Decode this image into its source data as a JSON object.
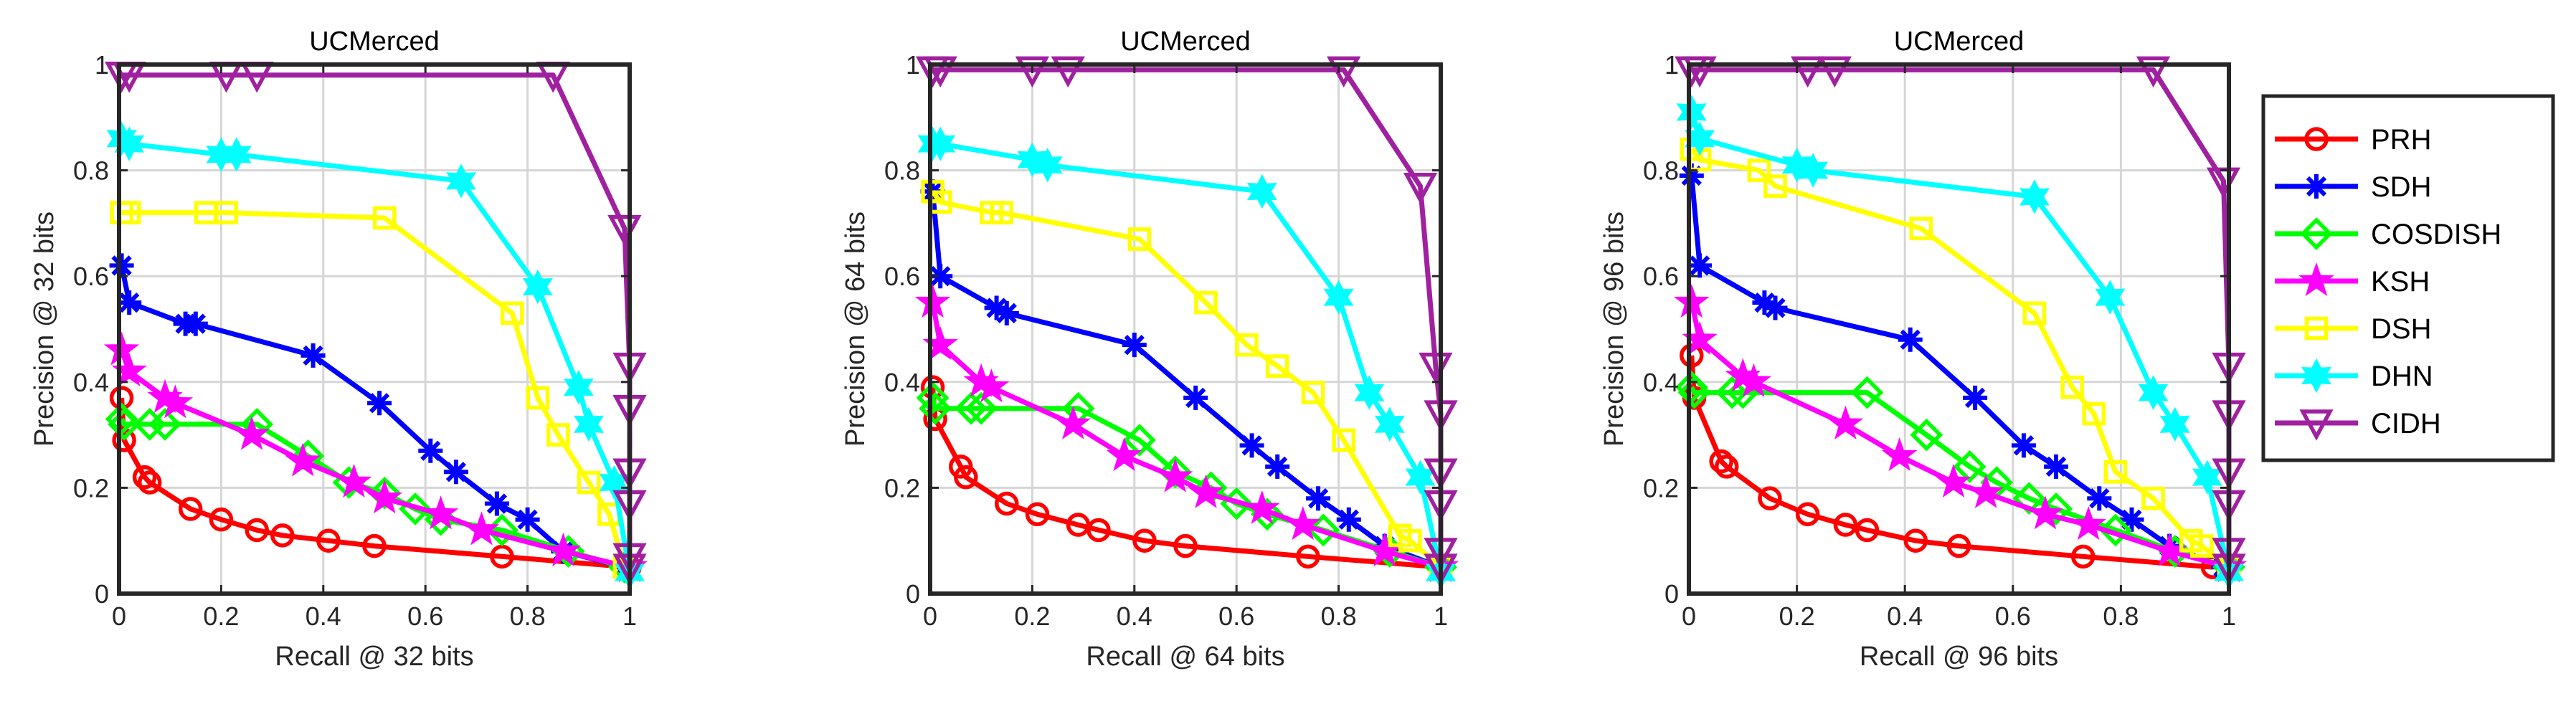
{
  "legend": {
    "placement": "right",
    "entries": [
      {
        "name": "PRH",
        "color": "#FF0000",
        "marker": "circle"
      },
      {
        "name": "SDH",
        "color": "#0000FF",
        "marker": "asterisk"
      },
      {
        "name": "COSDISH",
        "color": "#00FF00",
        "marker": "diamond"
      },
      {
        "name": "KSH",
        "color": "#FF00FF",
        "marker": "pentagram"
      },
      {
        "name": "DSH",
        "color": "#FFFF00",
        "marker": "square"
      },
      {
        "name": "DHN",
        "color": "#00FFFF",
        "marker": "hexagram"
      },
      {
        "name": "CIDH",
        "color": "#A020A0",
        "marker": "triangle-down"
      }
    ]
  },
  "chart_data": [
    {
      "type": "line",
      "title": "UCMerced",
      "xlabel": "Recall @ 32 bits",
      "ylabel": "Precision @ 32 bits",
      "xlim": [
        0,
        1
      ],
      "ylim": [
        0,
        1
      ],
      "grid": true,
      "xticks": [
        0,
        0.2,
        0.4,
        0.6,
        0.8,
        1
      ],
      "xticklabels": [
        "0",
        "0.2",
        "0.4",
        "0.6",
        "0.8",
        "1"
      ],
      "yticks": [
        0,
        0.2,
        0.4,
        0.6,
        0.8,
        1
      ],
      "yticklabels": [
        "0",
        "0.2",
        "0.4",
        "0.6",
        "0.8",
        "1"
      ],
      "series": [
        {
          "name": "PRH",
          "x": [
            0.005,
            0.01,
            0.05,
            0.06,
            0.14,
            0.2,
            0.27,
            0.32,
            0.41,
            0.5,
            0.75,
            1.0
          ],
          "y": [
            0.37,
            0.29,
            0.22,
            0.21,
            0.16,
            0.14,
            0.12,
            0.11,
            0.1,
            0.09,
            0.07,
            0.05
          ]
        },
        {
          "name": "SDH",
          "x": [
            0.005,
            0.02,
            0.13,
            0.15,
            0.38,
            0.51,
            0.61,
            0.66,
            0.74,
            0.8,
            0.87,
            0.99
          ],
          "y": [
            0.62,
            0.55,
            0.51,
            0.51,
            0.45,
            0.36,
            0.27,
            0.23,
            0.17,
            0.14,
            0.08,
            0.05
          ]
        },
        {
          "name": "COSDISH",
          "x": [
            0.005,
            0.01,
            0.06,
            0.09,
            0.27,
            0.37,
            0.45,
            0.52,
            0.58,
            0.63,
            0.75,
            0.88,
            0.99
          ],
          "y": [
            0.33,
            0.32,
            0.32,
            0.32,
            0.32,
            0.26,
            0.21,
            0.19,
            0.16,
            0.14,
            0.12,
            0.08,
            0.05
          ]
        },
        {
          "name": "KSH",
          "x": [
            0.005,
            0.02,
            0.09,
            0.11,
            0.26,
            0.36,
            0.46,
            0.52,
            0.63,
            0.71,
            0.87,
            1.0
          ],
          "y": [
            0.46,
            0.42,
            0.37,
            0.36,
            0.3,
            0.25,
            0.21,
            0.18,
            0.15,
            0.12,
            0.08,
            0.05
          ]
        },
        {
          "name": "DSH",
          "x": [
            0.005,
            0.02,
            0.17,
            0.21,
            0.52,
            0.77,
            0.82,
            0.86,
            0.92,
            0.96,
            0.99
          ],
          "y": [
            0.72,
            0.72,
            0.72,
            0.72,
            0.71,
            0.53,
            0.37,
            0.3,
            0.21,
            0.15,
            0.05
          ]
        },
        {
          "name": "DHN",
          "x": [
            0.005,
            0.02,
            0.2,
            0.23,
            0.67,
            0.82,
            0.9,
            0.92,
            0.97,
            1.0
          ],
          "y": [
            0.86,
            0.85,
            0.83,
            0.83,
            0.78,
            0.58,
            0.39,
            0.32,
            0.21,
            0.04
          ]
        },
        {
          "name": "CIDH",
          "x": [
            0.005,
            0.02,
            0.21,
            0.27,
            0.85,
            0.99,
            1.0,
            1.0,
            1.0,
            1.0,
            1.0,
            1.0
          ],
          "y": [
            0.98,
            0.98,
            0.98,
            0.98,
            0.98,
            0.69,
            0.43,
            0.35,
            0.23,
            0.17,
            0.07,
            0.05
          ]
        }
      ]
    },
    {
      "type": "line",
      "title": "UCMerced",
      "xlabel": "Recall @ 64 bits",
      "ylabel": "Precision @ 64 bits",
      "xlim": [
        0,
        1
      ],
      "ylim": [
        0,
        1
      ],
      "grid": true,
      "xticks": [
        0,
        0.2,
        0.4,
        0.6,
        0.8,
        1
      ],
      "xticklabels": [
        "0",
        "0.2",
        "0.4",
        "0.6",
        "0.8",
        "1"
      ],
      "yticks": [
        0,
        0.2,
        0.4,
        0.6,
        0.8,
        1
      ],
      "yticklabels": [
        "0",
        "0.2",
        "0.4",
        "0.6",
        "0.8",
        "1"
      ],
      "series": [
        {
          "name": "PRH",
          "x": [
            0.005,
            0.01,
            0.06,
            0.07,
            0.15,
            0.21,
            0.29,
            0.33,
            0.42,
            0.5,
            0.74,
            1.0
          ],
          "y": [
            0.39,
            0.33,
            0.24,
            0.22,
            0.17,
            0.15,
            0.13,
            0.12,
            0.1,
            0.09,
            0.07,
            0.05
          ]
        },
        {
          "name": "SDH",
          "x": [
            0.005,
            0.02,
            0.13,
            0.15,
            0.4,
            0.52,
            0.63,
            0.68,
            0.76,
            0.82,
            0.89,
            1.0
          ],
          "y": [
            0.76,
            0.6,
            0.54,
            0.53,
            0.47,
            0.37,
            0.28,
            0.24,
            0.18,
            0.14,
            0.09,
            0.05
          ]
        },
        {
          "name": "COSDISH",
          "x": [
            0.005,
            0.01,
            0.08,
            0.1,
            0.29,
            0.41,
            0.48,
            0.55,
            0.6,
            0.66,
            0.77,
            0.9,
            1.0
          ],
          "y": [
            0.37,
            0.35,
            0.35,
            0.35,
            0.35,
            0.29,
            0.23,
            0.2,
            0.17,
            0.15,
            0.12,
            0.08,
            0.05
          ]
        },
        {
          "name": "KSH",
          "x": [
            0.005,
            0.02,
            0.1,
            0.12,
            0.28,
            0.38,
            0.48,
            0.54,
            0.65,
            0.73,
            0.89,
            1.0
          ],
          "y": [
            0.55,
            0.47,
            0.4,
            0.39,
            0.32,
            0.26,
            0.22,
            0.19,
            0.16,
            0.13,
            0.08,
            0.05
          ]
        },
        {
          "name": "DSH",
          "x": [
            0.005,
            0.02,
            0.12,
            0.14,
            0.41,
            0.54,
            0.62,
            0.68,
            0.75,
            0.81,
            0.92,
            0.94,
            1.0
          ],
          "y": [
            0.76,
            0.74,
            0.72,
            0.72,
            0.67,
            0.55,
            0.47,
            0.43,
            0.38,
            0.29,
            0.11,
            0.1,
            0.05
          ]
        },
        {
          "name": "DHN",
          "x": [
            0.005,
            0.02,
            0.2,
            0.23,
            0.65,
            0.8,
            0.86,
            0.9,
            0.96,
            1.0
          ],
          "y": [
            0.85,
            0.85,
            0.82,
            0.81,
            0.76,
            0.56,
            0.38,
            0.32,
            0.22,
            0.04
          ]
        },
        {
          "name": "CIDH",
          "x": [
            0.005,
            0.02,
            0.2,
            0.27,
            0.81,
            0.96,
            0.99,
            1.0,
            1.0,
            1.0,
            1.0,
            1.0
          ],
          "y": [
            0.99,
            0.99,
            0.99,
            0.99,
            0.99,
            0.77,
            0.43,
            0.34,
            0.23,
            0.17,
            0.08,
            0.05
          ]
        }
      ]
    },
    {
      "type": "line",
      "title": "UCMerced",
      "xlabel": "Recall @ 96 bits",
      "ylabel": "Precision @ 96 bits",
      "xlim": [
        0,
        1
      ],
      "ylim": [
        0,
        1
      ],
      "grid": true,
      "xticks": [
        0,
        0.2,
        0.4,
        0.6,
        0.8,
        1
      ],
      "xticklabels": [
        "0",
        "0.2",
        "0.4",
        "0.6",
        "0.8",
        "1"
      ],
      "yticks": [
        0,
        0.2,
        0.4,
        0.6,
        0.8,
        1
      ],
      "yticklabels": [
        "0",
        "0.2",
        "0.4",
        "0.6",
        "0.8",
        "1"
      ],
      "series": [
        {
          "name": "PRH",
          "x": [
            0.005,
            0.01,
            0.06,
            0.07,
            0.15,
            0.22,
            0.29,
            0.33,
            0.42,
            0.5,
            0.73,
            0.97
          ],
          "y": [
            0.45,
            0.37,
            0.25,
            0.24,
            0.18,
            0.15,
            0.13,
            0.12,
            0.1,
            0.09,
            0.07,
            0.05
          ]
        },
        {
          "name": "SDH",
          "x": [
            0.005,
            0.02,
            0.14,
            0.16,
            0.41,
            0.53,
            0.62,
            0.68,
            0.76,
            0.82,
            0.89,
            0.99
          ],
          "y": [
            0.79,
            0.62,
            0.55,
            0.54,
            0.48,
            0.37,
            0.28,
            0.24,
            0.18,
            0.14,
            0.09,
            0.05
          ]
        },
        {
          "name": "COSDISH",
          "x": [
            0.005,
            0.01,
            0.08,
            0.1,
            0.33,
            0.44,
            0.52,
            0.57,
            0.63,
            0.68,
            0.79,
            0.9,
            1.0
          ],
          "y": [
            0.39,
            0.38,
            0.38,
            0.38,
            0.38,
            0.3,
            0.24,
            0.21,
            0.18,
            0.16,
            0.12,
            0.08,
            0.05
          ]
        },
        {
          "name": "KSH",
          "x": [
            0.005,
            0.02,
            0.1,
            0.12,
            0.29,
            0.39,
            0.49,
            0.55,
            0.66,
            0.74,
            0.89,
            1.0
          ],
          "y": [
            0.55,
            0.48,
            0.41,
            0.4,
            0.32,
            0.26,
            0.21,
            0.19,
            0.15,
            0.13,
            0.08,
            0.05
          ]
        },
        {
          "name": "DSH",
          "x": [
            0.005,
            0.02,
            0.13,
            0.16,
            0.43,
            0.64,
            0.71,
            0.75,
            0.79,
            0.86,
            0.93,
            0.95,
            1.0
          ],
          "y": [
            0.84,
            0.82,
            0.8,
            0.77,
            0.69,
            0.53,
            0.39,
            0.34,
            0.23,
            0.18,
            0.1,
            0.09,
            0.05
          ]
        },
        {
          "name": "DHN",
          "x": [
            0.005,
            0.02,
            0.2,
            0.23,
            0.64,
            0.78,
            0.86,
            0.9,
            0.96,
            1.0
          ],
          "y": [
            0.91,
            0.86,
            0.81,
            0.8,
            0.75,
            0.56,
            0.38,
            0.32,
            0.22,
            0.04
          ]
        },
        {
          "name": "CIDH",
          "x": [
            0.005,
            0.02,
            0.22,
            0.27,
            0.86,
            0.99,
            1.0,
            1.0,
            1.0,
            1.0,
            1.0,
            1.0
          ],
          "y": [
            0.99,
            0.99,
            0.99,
            0.99,
            0.99,
            0.78,
            0.43,
            0.34,
            0.23,
            0.17,
            0.08,
            0.05
          ]
        }
      ]
    }
  ]
}
